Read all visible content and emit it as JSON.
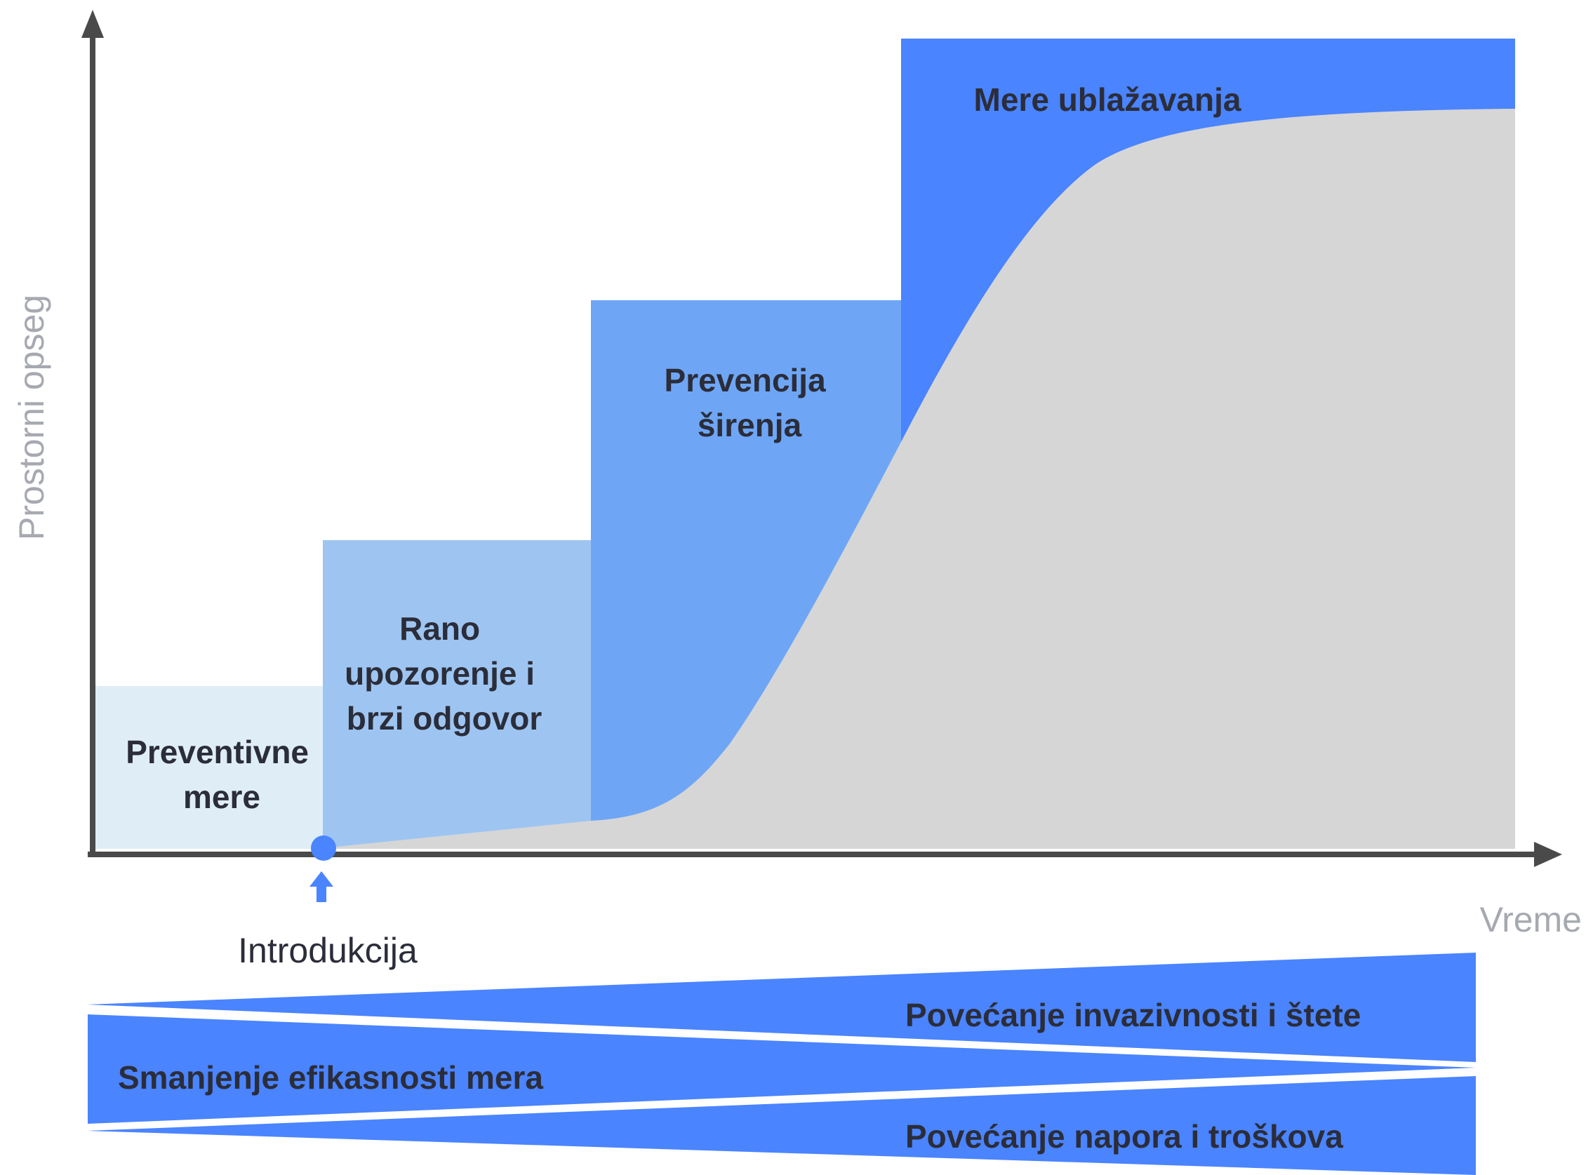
{
  "axes": {
    "y_label": "Prostorni opseg",
    "x_label": "Vreme"
  },
  "introduction": {
    "label": "Introdukcija"
  },
  "stages": [
    {
      "lines": [
        "Preventivne",
        "mere"
      ],
      "color": "#dfeef6"
    },
    {
      "lines": [
        "Rano",
        "upozorenje i",
        "brzi odgovor"
      ],
      "color": "#9ec5f1"
    },
    {
      "lines": [
        "Prevencija",
        "širenja"
      ],
      "color": "#6ea6f5"
    },
    {
      "lines": [
        "Mere ublažavanja"
      ],
      "color": "#4a84ff"
    }
  ],
  "trends": {
    "increasing_invasiveness": "Povećanje invazivnosti i štete",
    "decreasing_effectiveness": "Smanjenje efikasnosti mera",
    "increasing_effort": "Povećanje napora i troškova"
  },
  "colors": {
    "axis": "#4a4a4a",
    "invasion_area": "#d6d6d6",
    "accent": "#4a84ff",
    "marker": "#4a84ff"
  }
}
